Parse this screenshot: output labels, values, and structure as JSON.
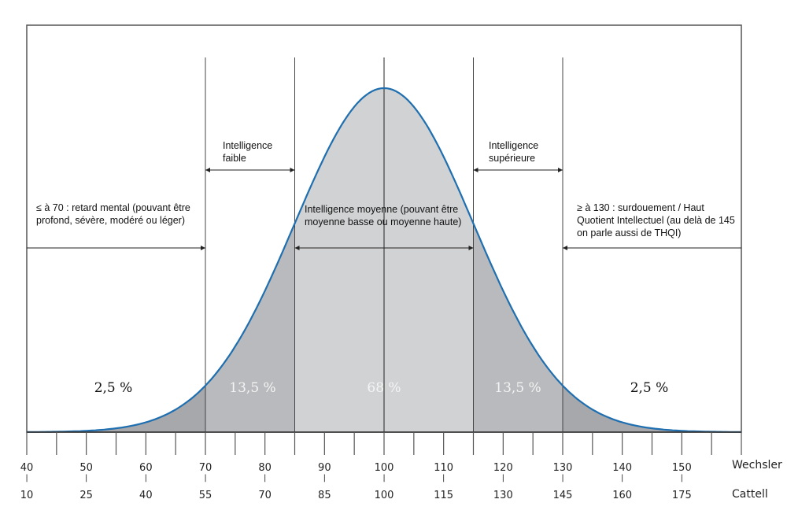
{
  "chart_data": {
    "type": "area",
    "title": "",
    "distribution": "normal",
    "mean": 100,
    "sd": 15,
    "xlim": [
      40,
      160
    ],
    "x_ticks_wechsler": [
      40,
      50,
      60,
      70,
      80,
      90,
      100,
      110,
      120,
      130,
      140,
      150
    ],
    "x_ticks_cattell": [
      10,
      25,
      40,
      55,
      70,
      85,
      100,
      115,
      130,
      145,
      160,
      175
    ],
    "scale_labels": {
      "wechsler": "Wechsler",
      "cattell": "Cattell"
    },
    "regions": [
      {
        "range": [
          40,
          70
        ],
        "percent": "2,5 %",
        "label": "≤ à 70 : retard mental (pouvant être profond, sévère, modéré ou léger)",
        "color": "#a7a8ab"
      },
      {
        "range": [
          70,
          85
        ],
        "percent": "13,5 %",
        "label": "Intelligence faible",
        "color": "#b9babd"
      },
      {
        "range": [
          85,
          115
        ],
        "percent": "68 %",
        "label": "Intelligence moyenne (pouvant être moyenne basse ou moyenne haute)",
        "color": "#d1d2d4"
      },
      {
        "range": [
          115,
          130
        ],
        "percent": "13,5 %",
        "label": "Intelligence supérieure",
        "color": "#b9babd"
      },
      {
        "range": [
          130,
          160
        ],
        "percent": "2,5 %",
        "label": "≥ à 130 : surdouement / Haut Quotient Intellectuel (au delà de 145 on parle aussi de THQI)",
        "color": "#a7a8ab"
      }
    ],
    "curve_color": "#1f6fb0"
  },
  "labels": {
    "left": "≤ à 70 : retard mental (pouvant être profond, sévère, modéré ou léger)",
    "faible": "Intelligence faible",
    "moyenne": "Intelligence moyenne (pouvant être moyenne basse ou moyenne haute)",
    "superieure": "Intelligence supérieure",
    "right": "≥ à 130 : surdouement / Haut Quotient Intellectuel (au delà de 145 on parle aussi de THQI)"
  },
  "percents": {
    "far_left": "2,5 %",
    "left": "13,5 %",
    "center": "68 %",
    "right": "13,5 %",
    "far_right": "2,5 %"
  },
  "axis": {
    "wechsler": [
      "40",
      "50",
      "60",
      "70",
      "80",
      "90",
      "100",
      "110",
      "120",
      "130",
      "140",
      "150"
    ],
    "cattell": [
      "10",
      "25",
      "40",
      "55",
      "70",
      "85",
      "100",
      "115",
      "130",
      "145",
      "160",
      "175"
    ],
    "wechsler_label": "Wechsler",
    "cattell_label": "Cattell"
  }
}
